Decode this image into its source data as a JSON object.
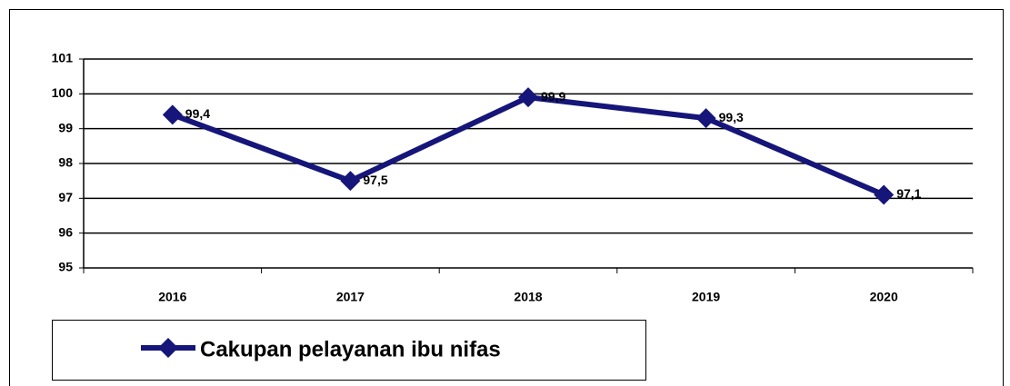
{
  "chart_data": {
    "type": "line",
    "categories": [
      "2016",
      "2017",
      "2018",
      "2019",
      "2020"
    ],
    "series": [
      {
        "name": "Cakupan pelayanan ibu nifas",
        "color": "#15157a",
        "values": [
          99.4,
          97.5,
          99.9,
          99.3,
          97.1
        ],
        "value_labels": [
          "99,4",
          "97,5",
          "99,9",
          "99,3",
          "97,1"
        ]
      }
    ],
    "ylim": [
      95,
      101
    ],
    "yticks": [
      95,
      96,
      97,
      98,
      99,
      100,
      101
    ],
    "grid": true,
    "legend": "bottom"
  }
}
